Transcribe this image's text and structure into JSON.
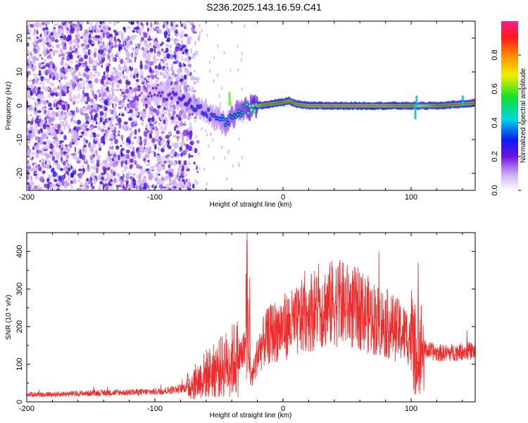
{
  "title": "S236.2025.143.16.59.C41",
  "chart_data": [
    {
      "type": "heatmap",
      "xlabel": "Height of straight line (km)",
      "ylabel": "Frequency (Hz)",
      "xlim": [
        -200,
        150
      ],
      "ylim": [
        -25,
        25
      ],
      "x_ticks": [
        "-200",
        "-100",
        "0",
        "100"
      ],
      "y_ticks": [
        "-20",
        "-10",
        "0",
        "10",
        "20"
      ],
      "ridge": {
        "description": "spectral peak track",
        "x": [
          -100,
          -90,
          -80,
          -70,
          -60,
          -50,
          -45,
          -40,
          -30,
          -20,
          -10,
          0,
          5,
          10,
          20,
          40,
          60,
          80,
          100,
          105,
          120,
          140,
          150
        ],
        "freq": [
          4,
          3,
          2,
          0,
          -2,
          -4,
          -5,
          -3,
          -1,
          0,
          0.5,
          1,
          1.5,
          0.5,
          0,
          0,
          0,
          0,
          0,
          0,
          0,
          0.5,
          0.8
        ],
        "amplitude": [
          0.2,
          0.25,
          0.3,
          0.35,
          0.35,
          0.4,
          0.45,
          0.5,
          0.55,
          0.8,
          0.95,
          0.9,
          0.85,
          0.95,
          1.0,
          1.0,
          1.0,
          1.0,
          0.95,
          0.7,
          0.9,
          0.95,
          0.95
        ]
      },
      "colorbar": {
        "label": "Normalized spectral amplitude",
        "range": [
          0,
          1
        ],
        "ticks": [
          "0.0",
          "0.2",
          "0.4",
          "0.6",
          "0.8"
        ]
      }
    },
    {
      "type": "line",
      "xlabel": "Height of straight line (km)",
      "ylabel": "SNR (10 * v/v)",
      "xlim": [
        -200,
        150
      ],
      "ylim": [
        0,
        450
      ],
      "x_ticks": [
        "-200",
        "-100",
        "0",
        "100"
      ],
      "y_ticks": [
        "0",
        "100",
        "200",
        "300",
        "400"
      ],
      "series": [
        {
          "name": "SNR",
          "color": "#ee2a2a",
          "x": [
            -200,
            -180,
            -160,
            -140,
            -120,
            -100,
            -90,
            -80,
            -75,
            -70,
            -65,
            -60,
            -55,
            -50,
            -45,
            -40,
            -35,
            -30,
            -28,
            -27,
            -25,
            -22,
            -20,
            -15,
            -10,
            -5,
            0,
            5,
            10,
            15,
            20,
            25,
            30,
            35,
            40,
            45,
            50,
            55,
            60,
            65,
            70,
            75,
            80,
            85,
            90,
            95,
            100,
            103,
            105,
            107,
            110,
            115,
            120,
            130,
            140,
            150
          ],
          "y": [
            20,
            20,
            22,
            24,
            25,
            27,
            30,
            35,
            40,
            50,
            60,
            75,
            80,
            90,
            100,
            110,
            120,
            130,
            330,
            120,
            60,
            90,
            130,
            160,
            180,
            190,
            200,
            205,
            210,
            225,
            240,
            245,
            250,
            255,
            265,
            260,
            255,
            250,
            245,
            235,
            225,
            215,
            210,
            200,
            190,
            180,
            170,
            140,
            40,
            150,
            140,
            135,
            130,
            130,
            135,
            135
          ]
        }
      ]
    }
  ]
}
